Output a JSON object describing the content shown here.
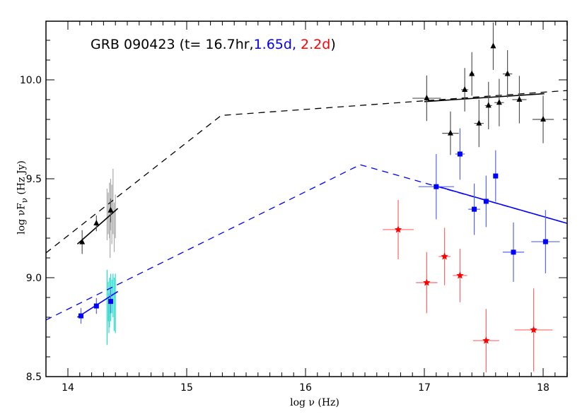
{
  "chart_data": {
    "type": "scatter",
    "title_parts": [
      {
        "text": "GRB 090423 (t= 16.7hr,",
        "color": "#000000"
      },
      {
        "text": "1.65d,",
        "color": "#0000ff"
      },
      {
        "text": " 2.2d",
        "color": "#ff0000"
      },
      {
        "text": ")",
        "color": "#000000"
      }
    ],
    "xlabel": "log ν (Hz)",
    "ylabel_main": "log νF",
    "ylabel_sub": "ν",
    "ylabel_unit": " (Hz Jy)",
    "xlim": [
      13.815,
      18.2
    ],
    "ylim": [
      8.49,
      10.3
    ],
    "xticks": [
      "14",
      "15",
      "16",
      "17",
      "18"
    ],
    "yticks": [
      "8.5",
      "9.0",
      "9.5",
      "10.0"
    ],
    "series": [
      {
        "marker": "triangle",
        "color": "#000000",
        "errcolor": "#555555",
        "points": [
          {
            "x": 14.12,
            "y": 9.18,
            "xerr": 0,
            "yerr": 0.06
          },
          {
            "x": 14.24,
            "y": 9.275,
            "xerr": 0,
            "yerr": 0.04
          },
          {
            "x": 14.36,
            "y": 9.34,
            "xerr": 0,
            "yerr": 0.06
          },
          {
            "x": 17.02,
            "y": 9.907,
            "xerr": 0.12,
            "yerr": 0.115
          },
          {
            "x": 17.22,
            "y": 9.73,
            "xerr": 0.07,
            "yerr": 0.11
          },
          {
            "x": 17.34,
            "y": 9.95,
            "xerr": 0.03,
            "yerr": 0.11
          },
          {
            "x": 17.4,
            "y": 10.03,
            "xerr": 0.02,
            "yerr": 0.11
          },
          {
            "x": 17.46,
            "y": 9.78,
            "xerr": 0.04,
            "yerr": 0.12
          },
          {
            "x": 17.54,
            "y": 9.87,
            "xerr": 0.03,
            "yerr": 0.12
          },
          {
            "x": 17.58,
            "y": 10.17,
            "xerr": 0,
            "yerr": 0.12
          },
          {
            "x": 17.63,
            "y": 9.885,
            "xerr": 0.04,
            "yerr": 0.12
          },
          {
            "x": 17.7,
            "y": 10.03,
            "xerr": 0.04,
            "yerr": 0.12
          },
          {
            "x": 17.8,
            "y": 9.9,
            "xerr": 0.06,
            "yerr": 0.12
          },
          {
            "x": 18.0,
            "y": 9.8,
            "xerr": 0.09,
            "yerr": 0.12
          }
        ]
      },
      {
        "marker": "square",
        "color": "#0000ff",
        "errcolor": "#5566ee",
        "points": [
          {
            "x": 14.11,
            "y": 8.807,
            "xerr": 0,
            "yerr": 0.04
          },
          {
            "x": 14.24,
            "y": 8.857,
            "xerr": 0,
            "yerr": 0.04
          },
          {
            "x": 14.36,
            "y": 8.88,
            "xerr": 0,
            "yerr": 0.06
          },
          {
            "x": 17.1,
            "y": 9.46,
            "xerr": 0.15,
            "yerr": 0.165
          },
          {
            "x": 17.3,
            "y": 9.625,
            "xerr": 0.04,
            "yerr": 0.13
          },
          {
            "x": 17.42,
            "y": 9.346,
            "xerr": 0.05,
            "yerr": 0.13
          },
          {
            "x": 17.52,
            "y": 9.386,
            "xerr": 0,
            "yerr": 0.13
          },
          {
            "x": 17.6,
            "y": 9.514,
            "xerr": 0.02,
            "yerr": 0.13
          },
          {
            "x": 17.75,
            "y": 9.129,
            "xerr": 0.09,
            "yerr": 0.15
          },
          {
            "x": 18.02,
            "y": 9.182,
            "xerr": 0.12,
            "yerr": 0.16
          }
        ]
      },
      {
        "marker": "star",
        "color": "#ff0000",
        "errcolor": "#ff6666",
        "points": [
          {
            "x": 16.78,
            "y": 9.243,
            "xerr": 0.13,
            "yerr": 0.15
          },
          {
            "x": 17.02,
            "y": 8.975,
            "xerr": 0.09,
            "yerr": 0.155
          },
          {
            "x": 17.17,
            "y": 9.107,
            "xerr": 0.05,
            "yerr": 0.145
          },
          {
            "x": 17.3,
            "y": 9.011,
            "xerr": 0.06,
            "yerr": 0.135
          },
          {
            "x": 17.52,
            "y": 8.682,
            "xerr": 0.11,
            "yerr": 0.16
          },
          {
            "x": 17.92,
            "y": 8.736,
            "xerr": 0.16,
            "yerr": 0.21
          }
        ]
      }
    ],
    "spectra": [
      {
        "color": "#aaaaaa",
        "lines": [
          [
            14.33,
            9.19,
            9.45
          ],
          [
            14.34,
            9.22,
            9.43
          ],
          [
            14.35,
            9.2,
            9.48
          ],
          [
            14.36,
            9.24,
            9.5
          ],
          [
            14.37,
            9.17,
            9.47
          ],
          [
            14.38,
            9.22,
            9.55
          ],
          [
            14.39,
            9.13,
            9.38
          ],
          [
            14.4,
            9.2,
            9.42
          ],
          [
            14.355,
            9.1,
            9.3
          ]
        ]
      },
      {
        "color": "#22ddcc",
        "lines": [
          [
            14.33,
            8.66,
            9.04
          ],
          [
            14.34,
            8.78,
            8.98
          ],
          [
            14.35,
            8.75,
            9.0
          ],
          [
            14.36,
            8.78,
            9.02
          ],
          [
            14.37,
            8.82,
            8.99
          ],
          [
            14.38,
            8.8,
            9.02
          ],
          [
            14.39,
            8.73,
            9.0
          ],
          [
            14.4,
            8.72,
            9.02
          ],
          [
            14.345,
            8.72,
            8.92
          ]
        ]
      }
    ],
    "models": [
      {
        "color": "#000000",
        "dash": true,
        "points": [
          [
            13.815,
            9.125
          ],
          [
            15.29,
            9.82
          ],
          [
            18.2,
            9.946
          ]
        ]
      },
      {
        "color": "#000000",
        "dash": false,
        "points": [
          [
            14.08,
            9.17
          ],
          [
            14.42,
            9.35
          ]
        ]
      },
      {
        "color": "#000000",
        "dash": false,
        "points": [
          [
            17.0,
            9.89
          ],
          [
            18.01,
            9.93
          ]
        ]
      },
      {
        "color": "#0000ff",
        "dash": true,
        "points": [
          [
            13.815,
            8.786
          ],
          [
            16.46,
            9.571
          ],
          [
            18.2,
            9.275
          ]
        ]
      },
      {
        "color": "#0000ff",
        "dash": false,
        "points": [
          [
            14.08,
            8.8
          ],
          [
            14.42,
            8.93
          ]
        ]
      },
      {
        "color": "#0000ff",
        "dash": false,
        "points": [
          [
            17.12,
            9.46
          ],
          [
            18.2,
            9.275
          ]
        ]
      }
    ]
  }
}
